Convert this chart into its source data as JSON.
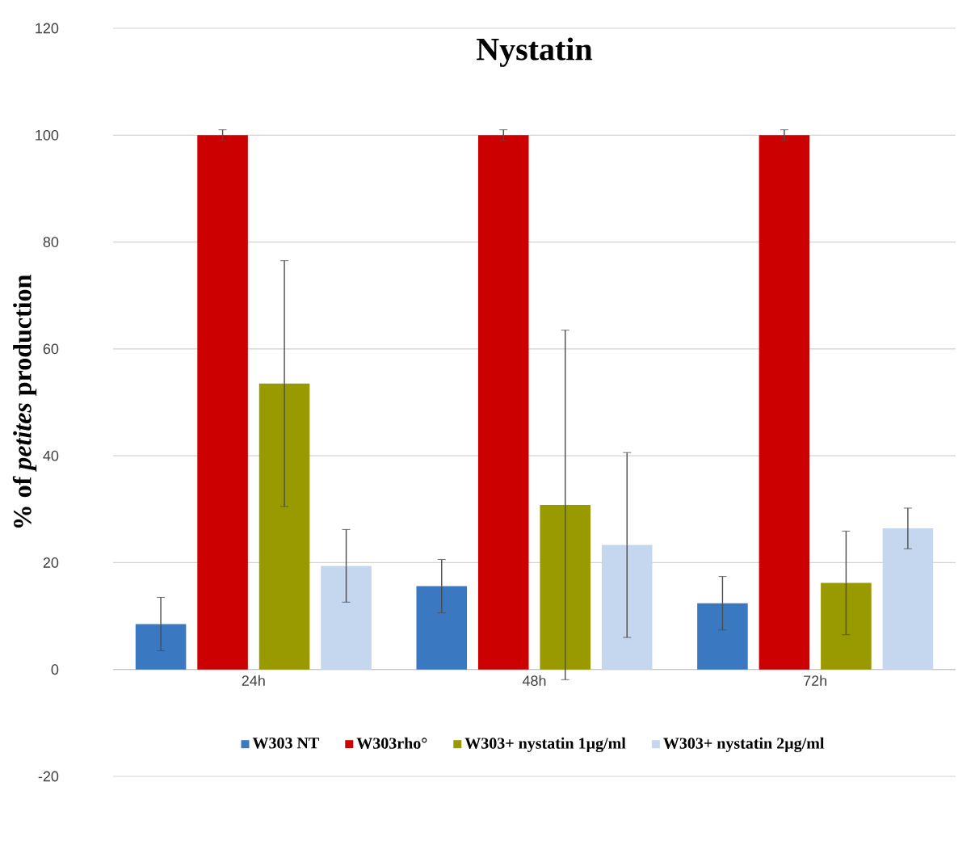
{
  "chart_data": {
    "type": "bar",
    "title": "Nystatin",
    "ylabel": "% of *petites* production",
    "categories": [
      "24h",
      "48h",
      "72h"
    ],
    "series": [
      {
        "name": "W303 NT",
        "color": "#3a78c2",
        "values": [
          8.5,
          15.6,
          12.4
        ],
        "errors": [
          5,
          5,
          5
        ]
      },
      {
        "name": "W303rho°",
        "color": "#cc0000",
        "values": [
          100,
          100,
          100
        ],
        "errors": [
          1,
          1,
          1
        ]
      },
      {
        "name": "W303+ nystatin 1µg/ml",
        "color": "#999900",
        "values": [
          53.5,
          30.8,
          16.2
        ],
        "errors": [
          23,
          32.7,
          9.7
        ]
      },
      {
        "name": "W303+ nystatin 2µg/ml",
        "color": "#c5d7ee",
        "values": [
          19.4,
          23.3,
          26.4
        ],
        "errors": [
          6.8,
          17.3,
          3.8
        ]
      }
    ],
    "ylim": [
      -20,
      120
    ],
    "yticks": [
      -20,
      0,
      20,
      40,
      60,
      80,
      100,
      120
    ],
    "grid": "y",
    "legend": "bottom"
  }
}
